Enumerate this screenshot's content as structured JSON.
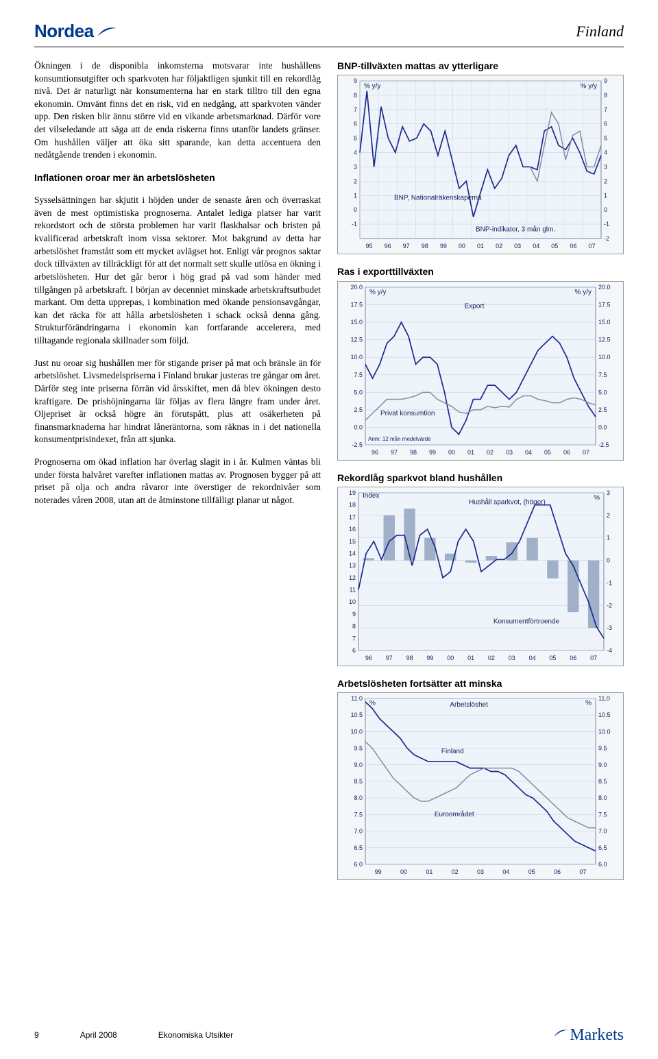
{
  "header": {
    "brand": "Nordea",
    "region": "Finland"
  },
  "text": {
    "p1": "Ökningen i de disponibla inkomsterna motsvarar inte hushållens konsumtionsutgifter och sparkvoten har följaktligen sjunkit till en rekordlåg nivå. Det är naturligt när konsumenterna har en stark tilltro till den egna ekonomin. Omvänt finns det en risk, vid en nedgång, att sparkvoten vänder upp. Den risken blir ännu större vid en vikande arbetsmarknad. Därför vore det vilseledande att säga att de enda riskerna finns utanför landets gränser. Om hushållen väljer att öka sitt sparande, kan detta accentuera den nedåtgående trenden i ekonomin.",
    "h2a": "Inflationen oroar mer än arbetslösheten",
    "p2": "Sysselsättningen har skjutit i höjden under de senaste åren och överraskat även de mest optimistiska prognoserna. Antalet lediga platser har varit rekordstort och de största problemen har varit flaskhalsar och bristen på kvalificerad arbetskraft inom vissa sektorer. Mot bakgrund av detta har arbetslöshet framstått som ett mycket avlägset hot. Enligt vår prognos saktar dock tillväxten av tillräckligt för att det normalt sett skulle utlösa en ökning i arbetslösheten. Hur det går beror i hög grad på vad som händer med tillgången på arbetskraft. I början av decenniet minskade arbetskraftsutbudet markant. Om detta upprepas, i kombination med ökande pensionsavgångar, kan det räcka för att hålla arbetslösheten i schack också denna gång. Strukturförändringarna i ekonomin kan fortfarande accelerera, med tilltagande regionala skillnader som följd.",
    "p3": "Just nu oroar sig hushållen mer för stigande priser på mat och bränsle än för arbetslöshet. Livsmedelspriserna i Finland brukar justeras tre gångar om året. Därför steg inte priserna förrän vid årsskiftet, men då blev ökningen desto kraftigare. De prishöjningarna lär följas av flera längre fram under året. Oljepriset är också högre än förutspått, plus att osäkerheten på finansmarknaderna har hindrat låneräntorna, som räknas in i det nationella konsumentprisindexet, från att sjunka.",
    "p4": "Prognoserna om ökad inflation har överlag slagit in i år. Kulmen väntas bli under första halvåret varefter inflationen mattas av. Prognosen bygger på att priset på olja och andra råvaror inte överstiger de rekordnivåer som noterades våren 2008, utan att de åtminstone tillfälligt planar ut något."
  },
  "chart1": {
    "title": "BNP-tillväxten mattas av ytterligare",
    "yl_top": "% y/y",
    "yr_top": "% y/y",
    "ylim": [
      -1,
      9
    ],
    "yticks_l": [
      9,
      8,
      7,
      6,
      5,
      4,
      3,
      2,
      1,
      0,
      -1
    ],
    "yticks_r": [
      9,
      8,
      7,
      6,
      5,
      4,
      3,
      2,
      1,
      0,
      -1,
      -2
    ],
    "xticks": [
      "95",
      "96",
      "97",
      "98",
      "99",
      "00",
      "01",
      "02",
      "03",
      "04",
      "05",
      "06",
      "07"
    ],
    "series_bnp_label": "BNP, Nationalräkenskaperna",
    "series_ind_label": "BNP-indikator, 3 mån glm.",
    "color_bnp": "#1a2a8c",
    "color_ind": "#8a8aa0",
    "bnp_values": [
      4.0,
      8.3,
      3.0,
      7.2,
      5.0,
      4.0,
      5.8,
      4.8,
      5.0,
      6.0,
      5.5,
      3.8,
      5.5,
      3.5,
      1.5,
      2.0,
      -0.5,
      1.2,
      2.8,
      1.5,
      2.2,
      3.8,
      4.5,
      3.0,
      3.0,
      2.8,
      5.5,
      5.8,
      4.5,
      4.2,
      5.0,
      4.0,
      2.7,
      2.5,
      3.8
    ],
    "ind_values": [
      null,
      null,
      null,
      null,
      null,
      null,
      null,
      null,
      null,
      null,
      null,
      null,
      null,
      null,
      null,
      null,
      null,
      null,
      null,
      null,
      null,
      null,
      null,
      null,
      3.0,
      2.0,
      4.5,
      6.8,
      6.0,
      3.5,
      5.2,
      5.5,
      3.0,
      3.0,
      4.5
    ],
    "bg": "#eef4fa",
    "grid": "#c8d4e2"
  },
  "chart2": {
    "title": "Ras i exporttillväxten",
    "yl_top": "% y/y",
    "yr_top": "% y/y",
    "ylim": [
      -2.5,
      20
    ],
    "yticks": [
      20.0,
      17.5,
      15.0,
      12.5,
      10.0,
      7.5,
      5.0,
      2.5,
      0.0,
      -2.5
    ],
    "xticks": [
      "96",
      "97",
      "98",
      "99",
      "00",
      "01",
      "02",
      "03",
      "04",
      "05",
      "06",
      "07"
    ],
    "export_label": "Export",
    "cons_label": "Privat konsumtion",
    "note": "Anm: 12 mån medelvärde",
    "color_export": "#1a2a8c",
    "color_cons": "#8a8aa0",
    "export_values": [
      9,
      7,
      9,
      12,
      13,
      15,
      13,
      9,
      10,
      10,
      9,
      5,
      0,
      -1,
      1,
      4,
      4,
      6,
      6,
      5,
      4,
      5,
      7,
      9,
      11,
      12,
      13,
      12,
      10,
      7,
      5,
      3,
      1.5
    ],
    "cons_values": [
      1,
      2,
      3,
      4,
      4,
      4,
      4.2,
      4.5,
      5,
      5,
      4,
      3.5,
      3,
      2.2,
      2,
      2.5,
      2.5,
      3,
      2.8,
      3,
      2.9,
      4,
      4.5,
      4.5,
      4,
      3.8,
      3.5,
      3.5,
      4,
      4.2,
      4,
      3.5,
      3.2
    ],
    "bg": "#eef4fa",
    "grid": "#c8d4e2"
  },
  "chart3": {
    "title": "Rekordlåg sparkvot bland hushållen",
    "yl_top": "Index",
    "yr_top": "%",
    "yl_lim": [
      6,
      19
    ],
    "yl_ticks": [
      19,
      18,
      17,
      16,
      15,
      14,
      13,
      12,
      11,
      10,
      9,
      8,
      7,
      6
    ],
    "yr_lim": [
      -4,
      3
    ],
    "yr_ticks": [
      3,
      2,
      1,
      0,
      -1,
      -2,
      -3,
      -4
    ],
    "xticks": [
      "96",
      "97",
      "98",
      "99",
      "00",
      "01",
      "02",
      "03",
      "04",
      "05",
      "06",
      "07"
    ],
    "bar_label": "Hushåll sparkvot, (höger)",
    "line_label": "Konsumentförtroende",
    "color_bar": "#9fb0c8",
    "color_line": "#1a2a8c",
    "bar_values": [
      0.1,
      2.0,
      2.3,
      1.0,
      0.3,
      -0.1,
      0.2,
      0.8,
      1.0,
      -0.8,
      -2.3,
      -3.0
    ],
    "line_values": [
      11,
      14,
      15,
      13.5,
      15,
      15.5,
      15.5,
      13,
      15.5,
      16,
      14.5,
      12,
      12.5,
      15,
      16,
      15,
      12.5,
      13,
      13.5,
      13.5,
      14,
      15,
      16.5,
      18,
      18,
      18,
      16,
      14,
      13,
      11.5,
      10,
      8,
      7
    ],
    "bg": "#eef4fa",
    "grid": "#c8d4e2"
  },
  "chart4": {
    "title": "Arbetslösheten fortsätter att minska",
    "yl_top": "%",
    "yr_top": "%",
    "ylim": [
      6.0,
      11.0
    ],
    "yticks": [
      11.0,
      10.5,
      10.0,
      9.5,
      9.0,
      8.5,
      8.0,
      7.5,
      7.0,
      6.5,
      6.0
    ],
    "xticks": [
      "99",
      "00",
      "01",
      "02",
      "03",
      "04",
      "05",
      "06",
      "07"
    ],
    "label": "Arbetslöshet",
    "fin_label": "Finland",
    "euro_label": "Euroområdet",
    "color_fin": "#1a2a8c",
    "color_euro": "#8a8aa0",
    "fin_values": [
      10.9,
      10.7,
      10.4,
      10.2,
      10.0,
      9.8,
      9.5,
      9.3,
      9.2,
      9.1,
      9.1,
      9.1,
      9.1,
      9.1,
      9.0,
      8.9,
      8.9,
      8.9,
      8.8,
      8.8,
      8.7,
      8.5,
      8.3,
      8.1,
      8.0,
      7.8,
      7.6,
      7.3,
      7.1,
      6.9,
      6.7,
      6.6,
      6.5,
      6.4
    ],
    "euro_values": [
      9.7,
      9.5,
      9.2,
      8.9,
      8.6,
      8.4,
      8.2,
      8.0,
      7.9,
      7.9,
      8.0,
      8.1,
      8.2,
      8.3,
      8.5,
      8.7,
      8.8,
      8.9,
      8.9,
      8.9,
      8.9,
      8.9,
      8.8,
      8.6,
      8.4,
      8.2,
      8.0,
      7.8,
      7.6,
      7.4,
      7.3,
      7.2,
      7.1,
      7.1
    ],
    "bg": "#eef4fa",
    "grid": "#c8d4e2"
  },
  "footer": {
    "page": "9",
    "date": "April 2008",
    "doc": "Ekonomiska Utsikter",
    "rbrand": "Markets"
  }
}
